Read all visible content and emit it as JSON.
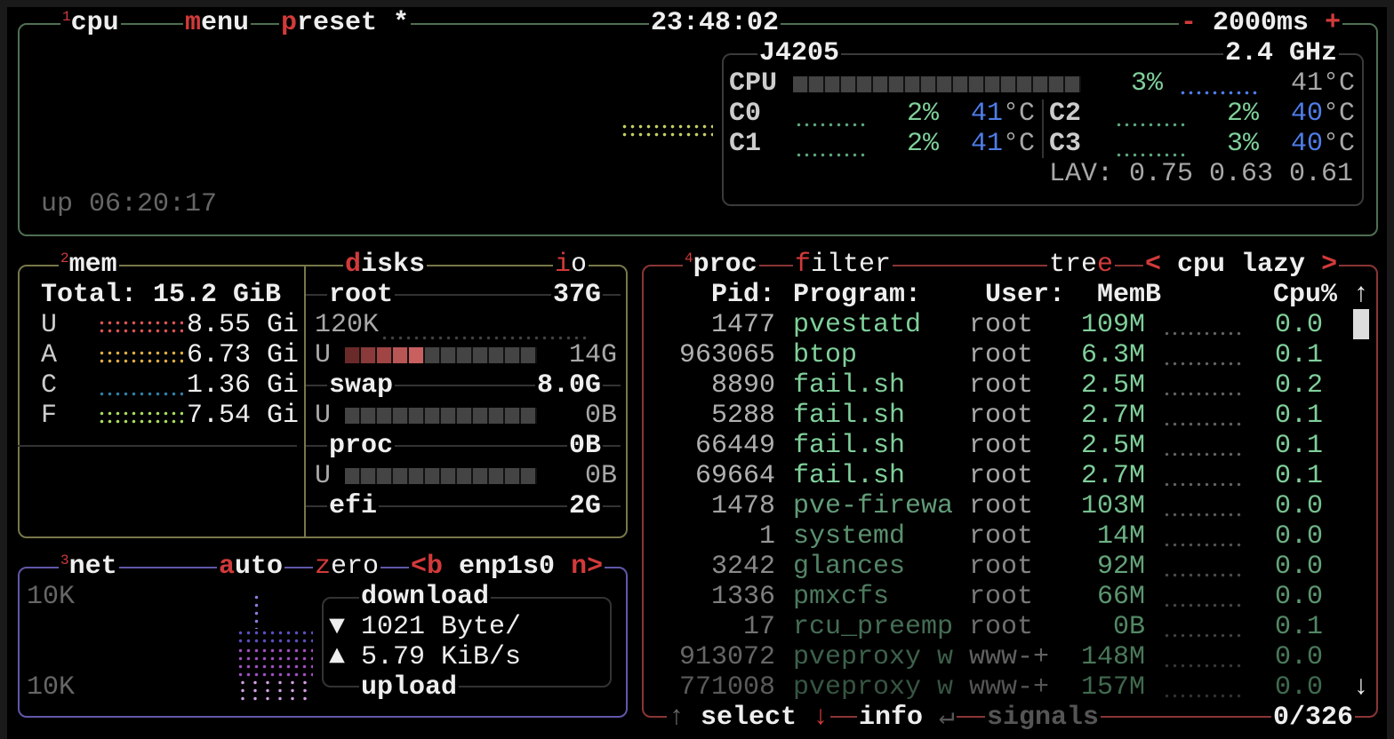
{
  "cpu": {
    "title_num": "1",
    "title": "cpu",
    "menu_key": "m",
    "menu_rest": "enu",
    "preset_key": "p",
    "preset_rest": "reset *",
    "clock": "23:48:02",
    "interval_minus": "-",
    "interval": "2000ms",
    "interval_plus": "+",
    "uptime": "up 06:20:17",
    "model": "J4205",
    "freq": "2.4 GHz",
    "total_label": "CPU",
    "total_pct": "3%",
    "total_temp": "41°C",
    "cores": [
      {
        "name": "C0",
        "pct": "2%",
        "temp": "41",
        "unit": "°C"
      },
      {
        "name": "C1",
        "pct": "2%",
        "temp": "41",
        "unit": "°C"
      },
      {
        "name": "C2",
        "pct": "2%",
        "temp": "40",
        "unit": "°C"
      },
      {
        "name": "C3",
        "pct": "3%",
        "temp": "40",
        "unit": "°C"
      }
    ],
    "lav": "LAV: 0.75 0.63 0.61",
    "usage_percent": 3
  },
  "mem": {
    "title_num": "2",
    "title": "mem",
    "total": "Total: 15.2 GiB",
    "rows": [
      {
        "label": "U",
        "value": "8.55 Gi",
        "color": "#e05555"
      },
      {
        "label": "A",
        "value": "6.73 Gi",
        "color": "#e0b040"
      },
      {
        "label": "C",
        "value": "1.36 Gi",
        "color": "#2f7fa8"
      },
      {
        "label": "F",
        "value": "7.54 Gi",
        "color": "#a8e060"
      }
    ]
  },
  "disks": {
    "title_key": "d",
    "title_rest": "isks",
    "io_key": "i",
    "io_rest": "o",
    "root": "root",
    "root_size": "37G",
    "root_io": "120K",
    "root_used_label": "U",
    "root_used": "14G",
    "root_used_percent": 38,
    "swap": "swap",
    "swap_size": "8.0G",
    "swap_used_label": "U",
    "swap_used": "0B",
    "proc": "proc",
    "proc_size": "0B",
    "proc_used_label": "U",
    "proc_used": "0B",
    "efi": "efi",
    "efi_size": "2G"
  },
  "net": {
    "title_num": "3",
    "title": "net",
    "auto_key": "a",
    "auto_rest": "uto",
    "zero_key": "z",
    "zero_rest": "ero",
    "prev_key": "<b",
    "iface": "enp1s0",
    "next_key": "n>",
    "scale_top": "10K",
    "scale_bottom": "10K",
    "download_label": "download",
    "download_arrow": "▼",
    "download": "1021 Byte/",
    "upload_arrow": "▲",
    "upload": "5.79 KiB/s",
    "upload_label": "upload"
  },
  "proc": {
    "title_num": "4",
    "title": "proc",
    "filter_key": "f",
    "filter_rest": "ilter",
    "tree_rest": "tre",
    "tree_key": "e",
    "sort_prev": "<",
    "sort": "cpu lazy",
    "sort_next": ">",
    "headers": {
      "pid": "Pid:",
      "program": "Program:",
      "user": "User:",
      "mem": "MemB",
      "cpu": "Cpu%"
    },
    "scroll_up": "↑",
    "scroll_down": "↓",
    "rows": [
      {
        "pid": "1477",
        "program": "pvestatd",
        "user": "root",
        "mem": "109M",
        "cpu": "0.0"
      },
      {
        "pid": "963065",
        "program": "btop",
        "user": "root",
        "mem": "6.3M",
        "cpu": "0.1"
      },
      {
        "pid": "8890",
        "program": "fail.sh",
        "user": "root",
        "mem": "2.5M",
        "cpu": "0.2"
      },
      {
        "pid": "5288",
        "program": "fail.sh",
        "user": "root",
        "mem": "2.7M",
        "cpu": "0.1"
      },
      {
        "pid": "66449",
        "program": "fail.sh",
        "user": "root",
        "mem": "2.5M",
        "cpu": "0.1"
      },
      {
        "pid": "69664",
        "program": "fail.sh",
        "user": "root",
        "mem": "2.7M",
        "cpu": "0.1"
      },
      {
        "pid": "1478",
        "program": "pve-firewa",
        "user": "root",
        "mem": "103M",
        "cpu": "0.0"
      },
      {
        "pid": "1",
        "program": "systemd",
        "user": "root",
        "mem": "14M",
        "cpu": "0.0"
      },
      {
        "pid": "3242",
        "program": "glances",
        "user": "root",
        "mem": "92M",
        "cpu": "0.0"
      },
      {
        "pid": "1336",
        "program": "pmxcfs",
        "user": "root",
        "mem": "66M",
        "cpu": "0.0"
      },
      {
        "pid": "17",
        "program": "rcu_preemp",
        "user": "root",
        "mem": "0B",
        "cpu": "0.1"
      },
      {
        "pid": "913072",
        "program": "pveproxy w",
        "user": "www-+",
        "mem": "148M",
        "cpu": "0.0"
      },
      {
        "pid": "771008",
        "program": "pveproxy w",
        "user": "www-+",
        "mem": "157M",
        "cpu": "0.0"
      }
    ],
    "footer": {
      "up": "↑",
      "select": "select",
      "down": "↓",
      "info": "info",
      "enter": "↵",
      "signals": "signals",
      "count": "0/326"
    }
  },
  "colors": {
    "cpu_box": "#4f6f52",
    "mem_box": "#77774a",
    "net_box": "#5f58a8",
    "proc_box": "#8a3535",
    "accent": "#d23a3a",
    "green": "#7fcf9a",
    "blue": "#4f7de8"
  }
}
